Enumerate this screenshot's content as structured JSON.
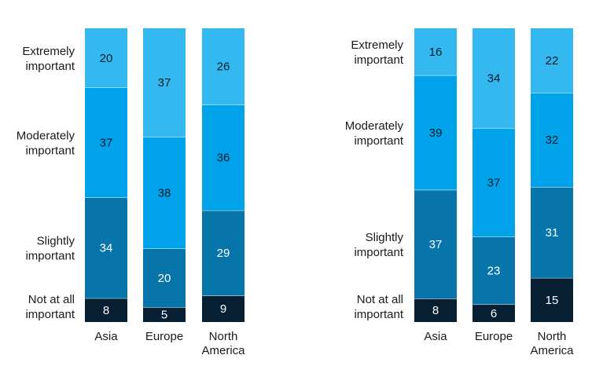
{
  "colors": {
    "extremely": "#33b8f0",
    "moderately": "#00a2ea",
    "slightly": "#0775aa",
    "not_at_all": "#061f33",
    "text_light_bg": "#0b1c2b",
    "text_dark_bg": "#ffffff"
  },
  "chart_data": [
    {
      "type": "bar",
      "stacked": true,
      "normalized": true,
      "categories": [
        "Asia",
        "Europe",
        "North America"
      ],
      "series": [
        {
          "name": "Not at all important",
          "values": [
            8,
            5,
            9
          ]
        },
        {
          "name": "Slightly important",
          "values": [
            34,
            20,
            29
          ]
        },
        {
          "name": "Moderately important",
          "values": [
            37,
            38,
            36
          ]
        },
        {
          "name": "Extremely important",
          "values": [
            20,
            37,
            26
          ]
        }
      ],
      "row_labels": [
        [
          "Extremely",
          "important"
        ],
        [
          "Moderately",
          "important"
        ],
        [
          "Slightly",
          "important"
        ],
        [
          "Not at all",
          "important"
        ]
      ],
      "title": "",
      "xlabel": "",
      "ylabel": "",
      "legend": "none",
      "grid": false
    },
    {
      "type": "bar",
      "stacked": true,
      "normalized": true,
      "categories": [
        "Asia",
        "Europe",
        "North America"
      ],
      "series": [
        {
          "name": "Not at all important",
          "values": [
            8,
            6,
            15
          ]
        },
        {
          "name": "Slightly important",
          "values": [
            37,
            23,
            31
          ]
        },
        {
          "name": "Moderately important",
          "values": [
            39,
            37,
            32
          ]
        },
        {
          "name": "Extremely important",
          "values": [
            16,
            34,
            22
          ]
        }
      ],
      "row_labels": [
        [
          "Extremely",
          "important"
        ],
        [
          "Moderately",
          "important"
        ],
        [
          "Slightly",
          "important"
        ],
        [
          "Not at all",
          "important"
        ]
      ],
      "title": "",
      "xlabel": "",
      "ylabel": "",
      "legend": "none",
      "grid": false
    }
  ]
}
